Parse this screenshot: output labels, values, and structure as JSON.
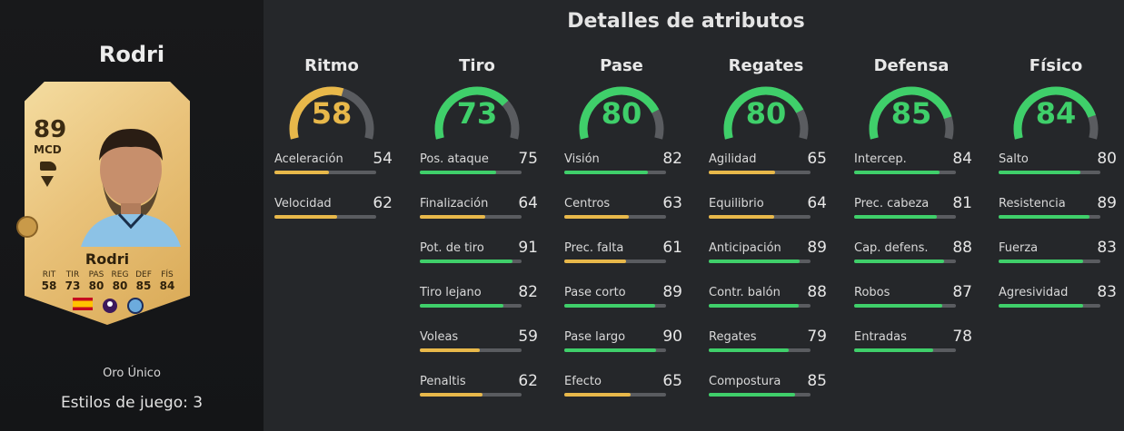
{
  "colors": {
    "gold": "#e8b84a",
    "green": "#3fcf6a",
    "track": "#5a5c60"
  },
  "left": {
    "player_name": "Rodri",
    "card": {
      "rating": "89",
      "position": "MCD",
      "name": "Rodri",
      "stats": [
        {
          "label": "RIT",
          "value": "58"
        },
        {
          "label": "TIR",
          "value": "73"
        },
        {
          "label": "PAS",
          "value": "80"
        },
        {
          "label": "REG",
          "value": "80"
        },
        {
          "label": "DEF",
          "value": "85"
        },
        {
          "label": "FÍS",
          "value": "84"
        }
      ],
      "icons": [
        "spain-flag-icon",
        "premier-league-icon",
        "manchester-city-crest-icon"
      ]
    },
    "card_type": "Oro Único",
    "playstyles": "Estilos de juego: 3"
  },
  "panel": {
    "title": "Detalles de atributos",
    "categories": [
      {
        "name": "Ritmo",
        "value": 58,
        "attrs": [
          {
            "label": "Aceleración",
            "value": 54
          },
          {
            "label": "Velocidad",
            "value": 62
          }
        ]
      },
      {
        "name": "Tiro",
        "value": 73,
        "attrs": [
          {
            "label": "Pos. ataque",
            "value": 75
          },
          {
            "label": "Finalización",
            "value": 64
          },
          {
            "label": "Pot. de tiro",
            "value": 91
          },
          {
            "label": "Tiro lejano",
            "value": 82
          },
          {
            "label": "Voleas",
            "value": 59
          },
          {
            "label": "Penaltis",
            "value": 62
          }
        ]
      },
      {
        "name": "Pase",
        "value": 80,
        "attrs": [
          {
            "label": "Visión",
            "value": 82
          },
          {
            "label": "Centros",
            "value": 63
          },
          {
            "label": "Prec. falta",
            "value": 61
          },
          {
            "label": "Pase corto",
            "value": 89
          },
          {
            "label": "Pase largo",
            "value": 90
          },
          {
            "label": "Efecto",
            "value": 65
          }
        ]
      },
      {
        "name": "Regates",
        "value": 80,
        "attrs": [
          {
            "label": "Agilidad",
            "value": 65
          },
          {
            "label": "Equilibrio",
            "value": 64
          },
          {
            "label": "Anticipación",
            "value": 89
          },
          {
            "label": "Contr. balón",
            "value": 88
          },
          {
            "label": "Regates",
            "value": 79
          },
          {
            "label": "Compostura",
            "value": 85
          }
        ]
      },
      {
        "name": "Defensa",
        "value": 85,
        "attrs": [
          {
            "label": "Intercep.",
            "value": 84
          },
          {
            "label": "Prec. cabeza",
            "value": 81
          },
          {
            "label": "Cap. defens.",
            "value": 88
          },
          {
            "label": "Robos",
            "value": 87
          },
          {
            "label": "Entradas",
            "value": 78
          }
        ]
      },
      {
        "name": "Físico",
        "value": 84,
        "attrs": [
          {
            "label": "Salto",
            "value": 80
          },
          {
            "label": "Resistencia",
            "value": 89
          },
          {
            "label": "Fuerza",
            "value": 83
          },
          {
            "label": "Agresividad",
            "value": 83
          }
        ]
      }
    ]
  }
}
